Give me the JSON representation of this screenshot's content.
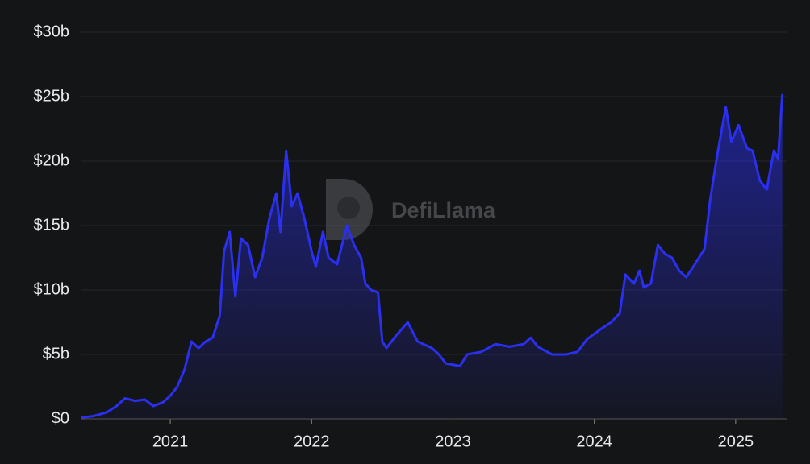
{
  "chart_data": {
    "type": "area",
    "watermark": "DefiLlama",
    "color": "#2a2ff0",
    "grid": true,
    "xlim": [
      2020.366,
      2025.366
    ],
    "xticks": [
      2021,
      2022,
      2023,
      2024,
      2025
    ],
    "ylim": [
      0,
      30
    ],
    "yticks": [
      {
        "value": 0,
        "label": "$0"
      },
      {
        "value": 5,
        "label": "$5b"
      },
      {
        "value": 10,
        "label": "$10b"
      },
      {
        "value": 15,
        "label": "$15b"
      },
      {
        "value": 20,
        "label": "$20b"
      },
      {
        "value": 25,
        "label": "$25b"
      },
      {
        "value": 30,
        "label": "$30b"
      }
    ],
    "x": [
      2020.37,
      2020.45,
      2020.55,
      2020.62,
      2020.68,
      2020.75,
      2020.82,
      2020.88,
      2020.95,
      2021.0,
      2021.05,
      2021.1,
      2021.15,
      2021.2,
      2021.25,
      2021.3,
      2021.35,
      2021.38,
      2021.42,
      2021.46,
      2021.5,
      2021.55,
      2021.6,
      2021.65,
      2021.7,
      2021.75,
      2021.78,
      2021.82,
      2021.86,
      2021.9,
      2021.95,
      2022.0,
      2022.03,
      2022.08,
      2022.12,
      2022.18,
      2022.25,
      2022.3,
      2022.35,
      2022.38,
      2022.42,
      2022.47,
      2022.5,
      2022.53,
      2022.6,
      2022.68,
      2022.75,
      2022.85,
      2022.9,
      2022.95,
      2023.05,
      2023.1,
      2023.2,
      2023.3,
      2023.4,
      2023.5,
      2023.55,
      2023.6,
      2023.7,
      2023.8,
      2023.88,
      2023.95,
      2024.05,
      2024.12,
      2024.18,
      2024.22,
      2024.28,
      2024.32,
      2024.35,
      2024.4,
      2024.45,
      2024.5,
      2024.55,
      2024.6,
      2024.65,
      2024.7,
      2024.78,
      2024.82,
      2024.87,
      2024.93,
      2024.97,
      2025.02,
      2025.08,
      2025.12,
      2025.17,
      2025.22,
      2025.27,
      2025.3,
      2025.33
    ],
    "values": [
      0.1,
      0.2,
      0.5,
      1.0,
      1.6,
      1.4,
      1.5,
      1.0,
      1.3,
      1.8,
      2.5,
      3.8,
      6.0,
      5.5,
      6.0,
      6.3,
      8.0,
      13.0,
      14.5,
      9.5,
      14.0,
      13.5,
      11.0,
      12.5,
      15.5,
      17.5,
      14.5,
      20.8,
      16.5,
      17.5,
      15.5,
      13.0,
      11.8,
      14.5,
      12.5,
      12.0,
      15.0,
      13.5,
      12.5,
      10.5,
      10.0,
      9.8,
      6.0,
      5.5,
      6.5,
      7.5,
      6.0,
      5.5,
      5.0,
      4.3,
      4.1,
      5.0,
      5.2,
      5.8,
      5.6,
      5.8,
      6.3,
      5.6,
      5.0,
      5.0,
      5.2,
      6.2,
      7.0,
      7.5,
      8.2,
      11.2,
      10.5,
      11.5,
      10.2,
      10.5,
      13.5,
      12.8,
      12.5,
      11.5,
      11.0,
      11.8,
      13.2,
      17.0,
      20.5,
      24.2,
      21.5,
      22.8,
      21.0,
      20.8,
      18.5,
      17.8,
      20.8,
      20.2,
      25.2
    ]
  }
}
